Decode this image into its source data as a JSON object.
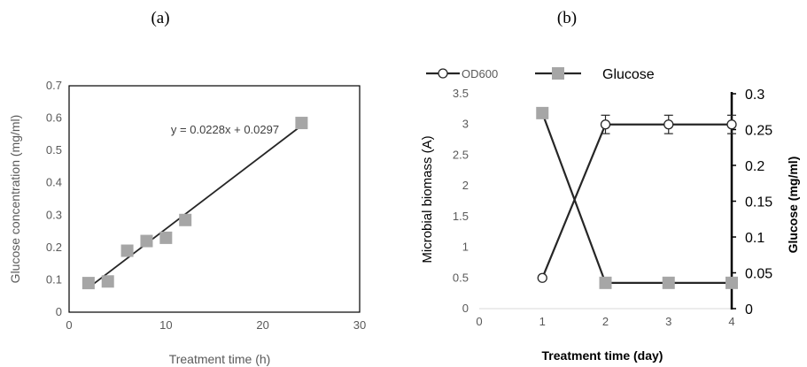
{
  "panel_labels": {
    "a": "(a)",
    "b": "(b)"
  },
  "chart_data": [
    {
      "type": "scatter",
      "panel": "(a)",
      "xlabel": "Treatment time (h)",
      "ylabel": "Glucose concentration (mg/ml)",
      "xlim": [
        0,
        30
      ],
      "ylim": [
        0,
        0.7
      ],
      "xticks": [
        "0",
        "10",
        "20",
        "30"
      ],
      "yticks": [
        "0",
        "0.1",
        "0.2",
        "0.3",
        "0.4",
        "0.5",
        "0.6",
        "0.7"
      ],
      "marker_color": "#a6a6a6",
      "line_color": "#262626",
      "points": [
        {
          "x": 2,
          "y": 0.09
        },
        {
          "x": 4,
          "y": 0.095
        },
        {
          "x": 6,
          "y": 0.19
        },
        {
          "x": 8,
          "y": 0.22
        },
        {
          "x": 10,
          "y": 0.23
        },
        {
          "x": 12,
          "y": 0.285
        },
        {
          "x": 24,
          "y": 0.585
        }
      ],
      "trendline": {
        "slope": 0.0228,
        "intercept": 0.0297,
        "x_range": [
          2,
          24
        ],
        "label": "y = 0.0228x + 0.0297"
      }
    },
    {
      "type": "line",
      "panel": "(b)",
      "xlabel": "Treatment time (day)",
      "ylabel_left": "Microbial biomass (A)",
      "ylabel_right": "Glucose (mg/ml)",
      "xlim": [
        0,
        4
      ],
      "ylim_left": [
        0,
        3.5
      ],
      "ylim_right": [
        0,
        0.3
      ],
      "xticks": [
        "0",
        "1",
        "2",
        "3",
        "4"
      ],
      "yticks_left": [
        "0",
        "0.5",
        "1",
        "1.5",
        "2",
        "2.5",
        "3",
        "3.5"
      ],
      "yticks_right": [
        "0",
        "0.05",
        "0.1",
        "0.15",
        "0.2",
        "0.25",
        "0.3"
      ],
      "legend": [
        "OD600",
        "Glucose"
      ],
      "series": [
        {
          "name": "OD600",
          "axis": "left",
          "marker": "circle",
          "x": [
            1,
            2,
            3,
            4
          ],
          "values": [
            0.5,
            3.0,
            3.0,
            3.0
          ],
          "error": [
            0.02,
            0.15,
            0.15,
            0.15
          ]
        },
        {
          "name": "Glucose",
          "axis": "right",
          "marker": "square",
          "x": [
            1,
            2,
            3,
            4
          ],
          "values": [
            0.273,
            0.036,
            0.036,
            0.036
          ]
        }
      ]
    }
  ]
}
